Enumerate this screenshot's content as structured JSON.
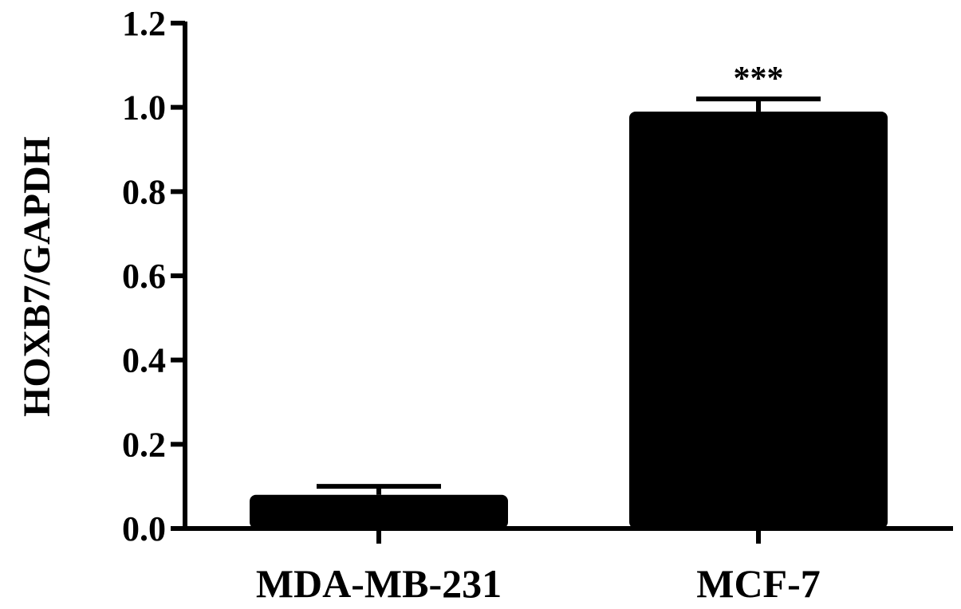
{
  "chart_data": {
    "type": "bar",
    "categories": [
      "MDA-MB-231",
      "MCF-7"
    ],
    "values": [
      0.08,
      0.99
    ],
    "errors": [
      0.02,
      0.03
    ],
    "annotations": [
      "",
      "***"
    ],
    "title": "",
    "xlabel": "",
    "ylabel": "HOXB7/GAPDH",
    "ylim": [
      0,
      1.2
    ],
    "yticks": [
      "0.0",
      "0.2",
      "0.4",
      "0.6",
      "0.8",
      "1.0",
      "1.2"
    ],
    "bar_color": "#000000",
    "grid": false,
    "legend": "none"
  }
}
